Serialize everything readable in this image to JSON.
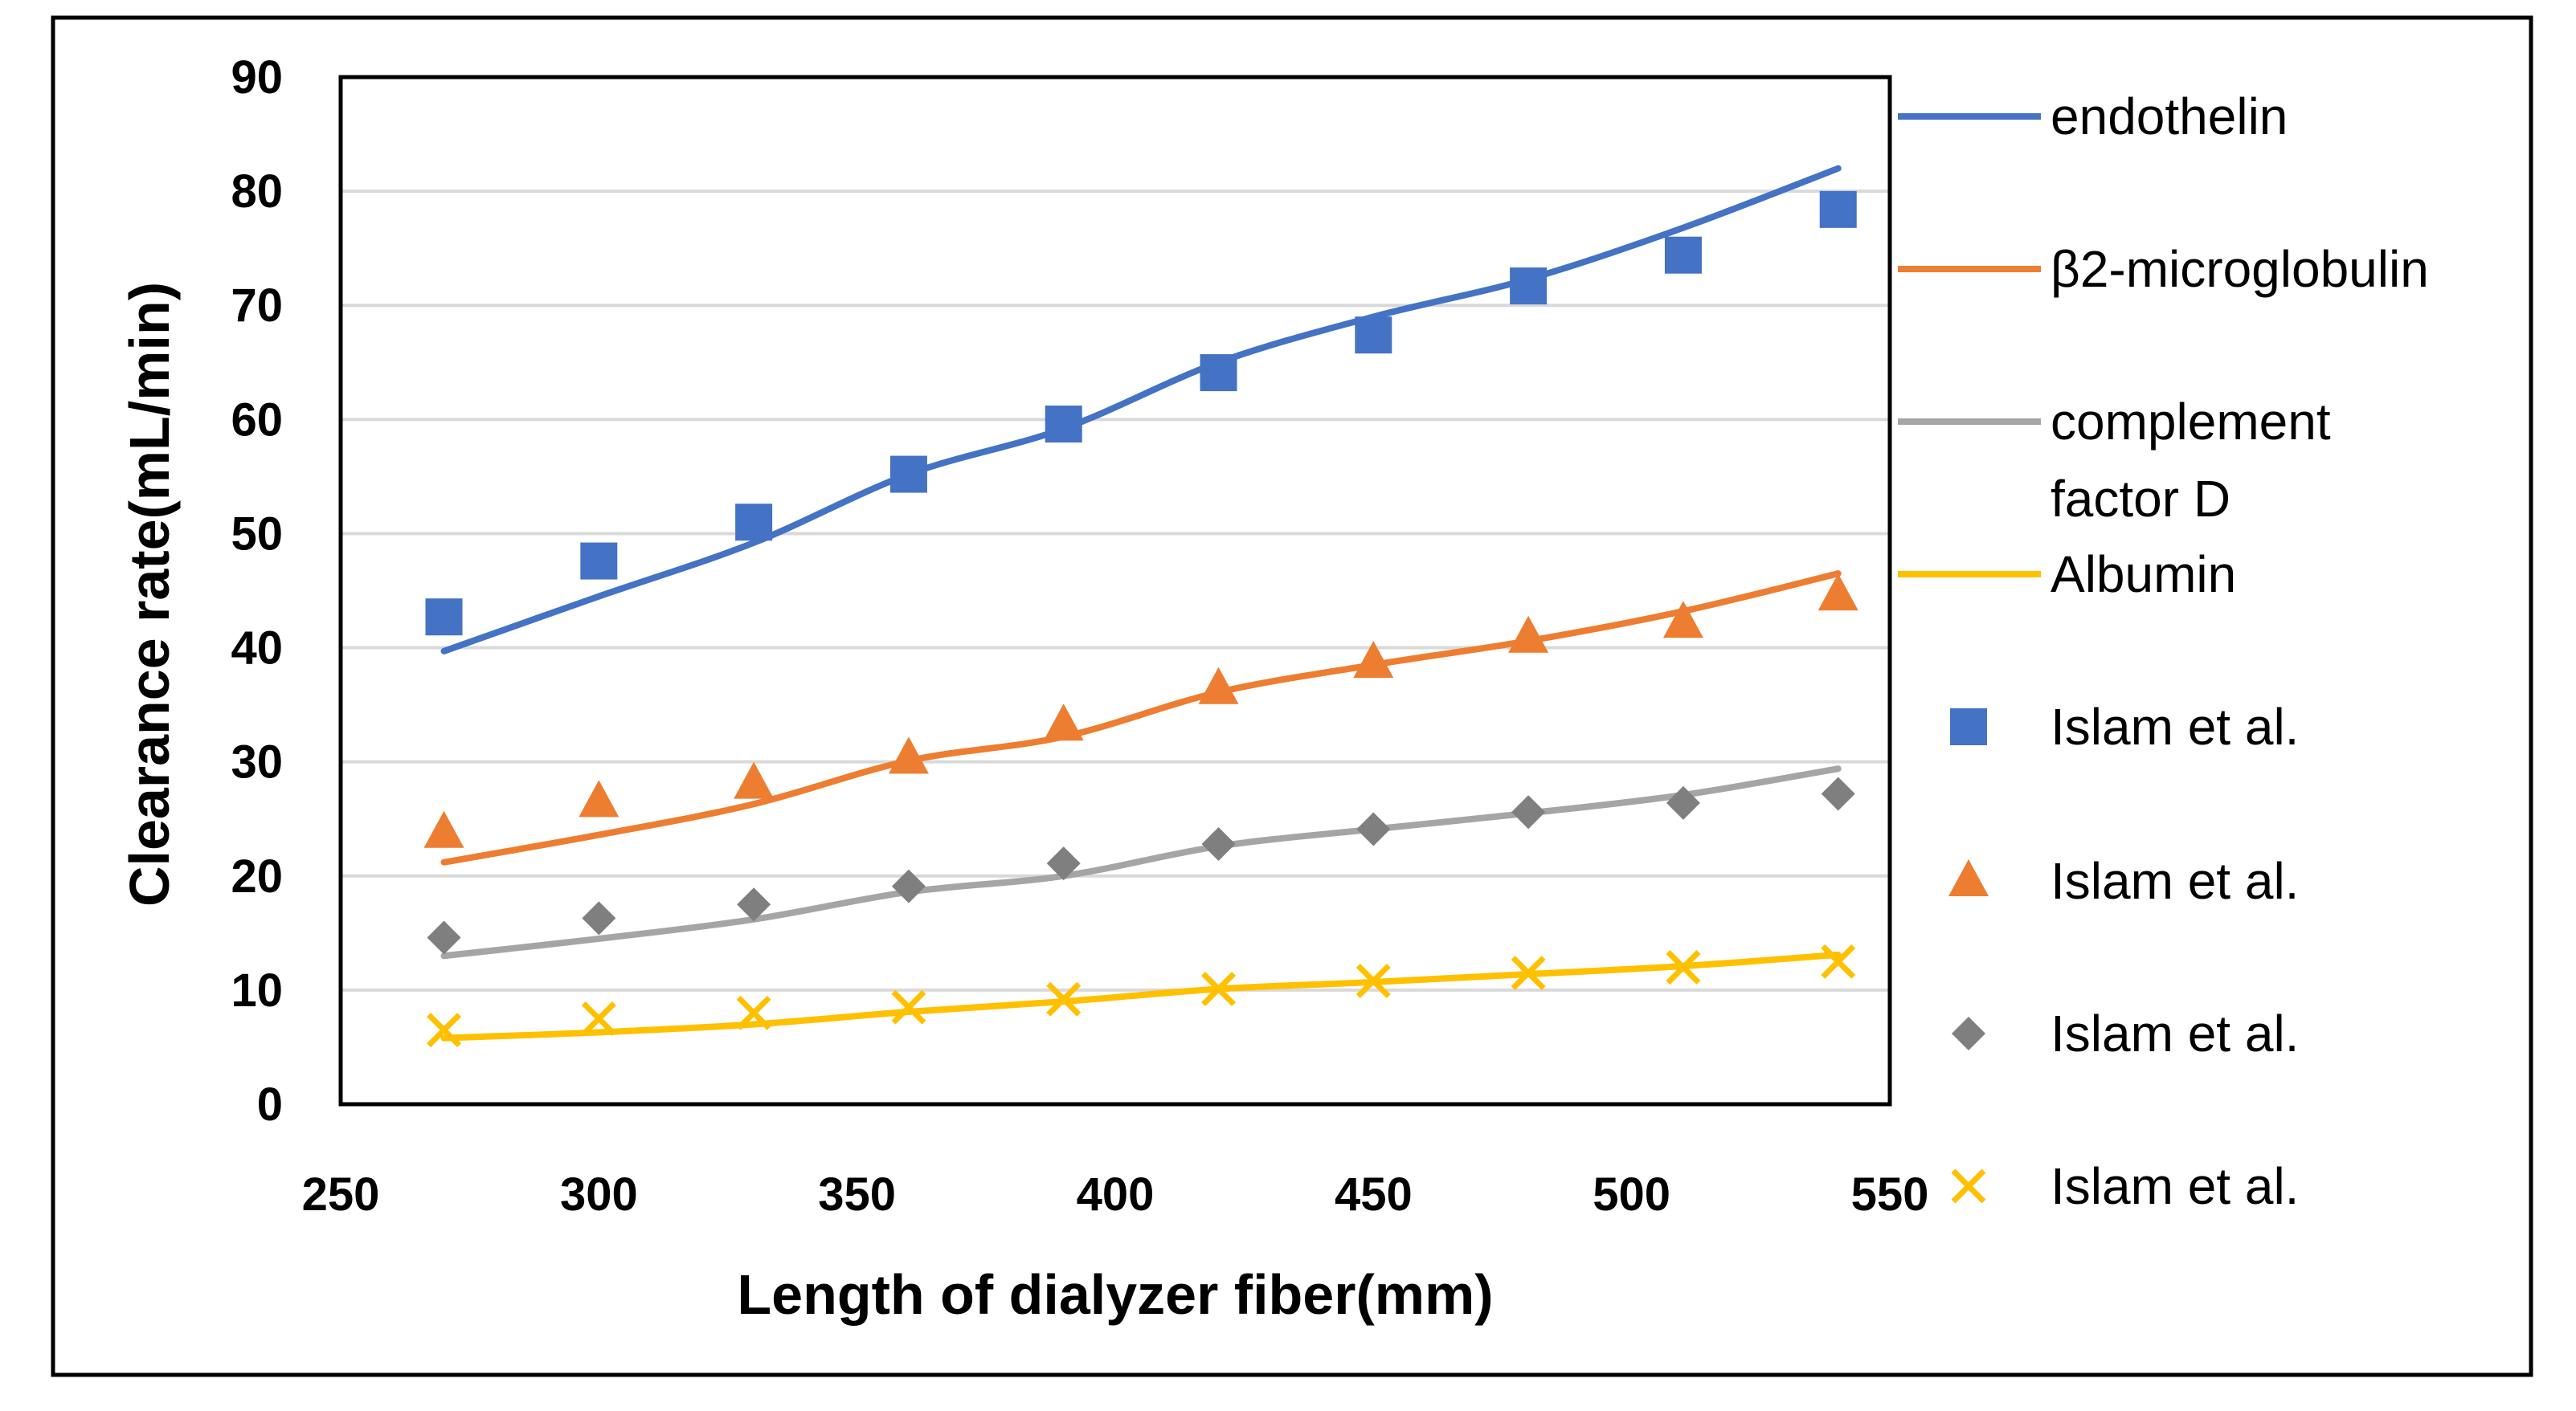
{
  "chart_data": {
    "type": "line",
    "title": "",
    "xlabel": "Length of dialyzer fiber(mm)",
    "ylabel": "Clearance rate(mL/min)",
    "xlim": [
      250,
      550
    ],
    "ylim": [
      0,
      90
    ],
    "x_ticks": [
      250,
      300,
      350,
      400,
      450,
      500,
      550
    ],
    "y_ticks": [
      0,
      10,
      20,
      30,
      40,
      50,
      60,
      70,
      80,
      90
    ],
    "grid": "horizontal",
    "legend_position": "right",
    "x": [
      270,
      300,
      330,
      360,
      390,
      420,
      450,
      480,
      510,
      540
    ],
    "series": [
      {
        "name": "endothelin",
        "kind": "line",
        "color": "#4472C4",
        "values": [
          39.7,
          44.5,
          49.2,
          55.2,
          59.2,
          65,
          69,
          72.3,
          76.8,
          82
        ]
      },
      {
        "name": "β2-microglobulin",
        "kind": "line",
        "color": "#ED7D31",
        "values": [
          21.2,
          23.6,
          26.3,
          30.1,
          32.2,
          36.1,
          38.5,
          40.6,
          43.2,
          46.5
        ]
      },
      {
        "name": "complement factor D",
        "kind": "line",
        "color": "#A5A5A5",
        "values": [
          13,
          14.5,
          16.2,
          18.6,
          20,
          22.6,
          24.1,
          25.5,
          27.1,
          29.4
        ]
      },
      {
        "name": "Albumin",
        "kind": "line",
        "color": "#FFC000",
        "values": [
          5.8,
          6.3,
          7,
          8.1,
          9,
          10.1,
          10.7,
          11.4,
          12.1,
          13.1
        ]
      },
      {
        "name": "Islam et al.",
        "kind": "marker",
        "marker": "square",
        "color": "#4472C4",
        "values": [
          42.7,
          47.6,
          51,
          55.2,
          59.6,
          64.1,
          67.4,
          71.7,
          74.4,
          78.4
        ]
      },
      {
        "name": "Islam et al.",
        "kind": "marker",
        "marker": "triangle",
        "color": "#ED7D31",
        "values": [
          23.8,
          26.5,
          28.1,
          30.3,
          33.2,
          36.4,
          38.7,
          40.9,
          42.2,
          44.6
        ]
      },
      {
        "name": "Islam et al.",
        "kind": "marker",
        "marker": "diamond",
        "color": "#7F7F7F",
        "values": [
          14.6,
          16.3,
          17.5,
          19.1,
          21.1,
          22.8,
          24.1,
          25.6,
          26.4,
          27.2
        ]
      },
      {
        "name": "Islam et al.",
        "kind": "marker",
        "marker": "x",
        "color": "#FFC000",
        "values": [
          6.5,
          7.5,
          8,
          8.5,
          9.2,
          10.1,
          10.8,
          11.5,
          12,
          12.5
        ]
      }
    ]
  }
}
